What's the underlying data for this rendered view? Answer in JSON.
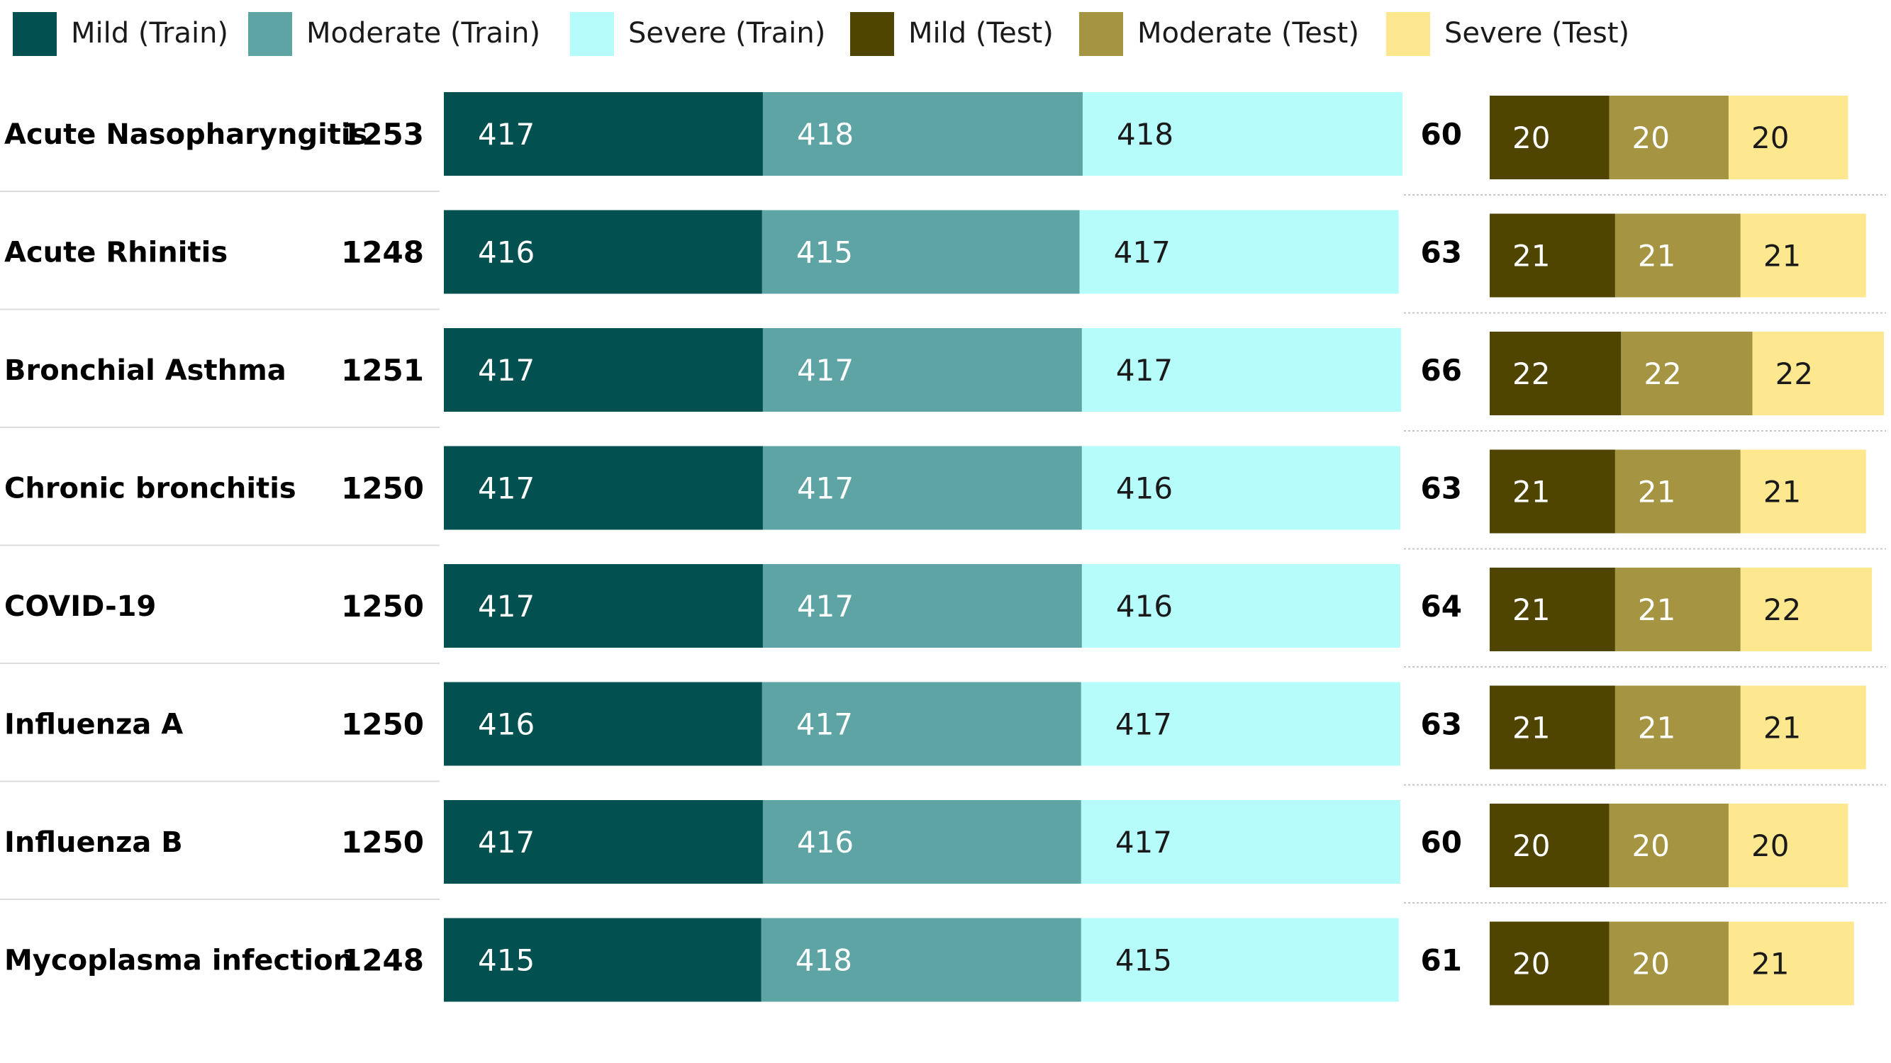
{
  "chart_data": {
    "type": "bar",
    "stacked": true,
    "orientation": "horizontal",
    "legend": {
      "placement": "top",
      "entries": [
        {
          "name": "Mild (Train)",
          "color": "#02504F"
        },
        {
          "name": "Moderate (Train)",
          "color": "#5FA4A4"
        },
        {
          "name": "Severe (Train)",
          "color": "#B5FCFB"
        },
        {
          "name": "Mild (Test)",
          "color": "#4F4400"
        },
        {
          "name": "Moderate (Test)",
          "color": "#A59543"
        },
        {
          "name": "Severe (Test)",
          "color": "#FDE78F"
        }
      ]
    },
    "categories": [
      "Acute Nasopharyngitis",
      "Acute Rhinitis",
      "Bronchial Asthma",
      "Chronic bronchitis",
      "COVID-19",
      "Influenza A",
      "Influenza B",
      "Mycoplasma infection"
    ],
    "train_totals": [
      1253,
      1248,
      1251,
      1250,
      1250,
      1250,
      1250,
      1248
    ],
    "test_totals": [
      60,
      63,
      66,
      63,
      64,
      63,
      60,
      61
    ],
    "train_series": [
      {
        "name": "Mild (Train)",
        "color": "#02504F",
        "label_color": "#ffffff",
        "values": [
          417,
          416,
          417,
          417,
          417,
          416,
          417,
          415
        ]
      },
      {
        "name": "Moderate (Train)",
        "color": "#5FA4A4",
        "label_color": "#ffffff",
        "values": [
          418,
          415,
          417,
          417,
          417,
          417,
          416,
          418
        ]
      },
      {
        "name": "Severe (Train)",
        "color": "#B5FCFB",
        "label_color": "#1a1a1a",
        "values": [
          418,
          417,
          417,
          416,
          416,
          417,
          417,
          415
        ]
      }
    ],
    "test_series": [
      {
        "name": "Mild (Test)",
        "color": "#4F4400",
        "label_color": "#ffffff",
        "values": [
          20,
          21,
          22,
          21,
          21,
          21,
          20,
          20
        ]
      },
      {
        "name": "Moderate (Test)",
        "color": "#A59543",
        "label_color": "#ffffff",
        "values": [
          20,
          21,
          22,
          21,
          21,
          21,
          20,
          20
        ]
      },
      {
        "name": "Severe (Test)",
        "color": "#FDE78F",
        "label_color": "#1a1a1a",
        "values": [
          20,
          21,
          22,
          21,
          22,
          21,
          20,
          21
        ]
      }
    ]
  }
}
